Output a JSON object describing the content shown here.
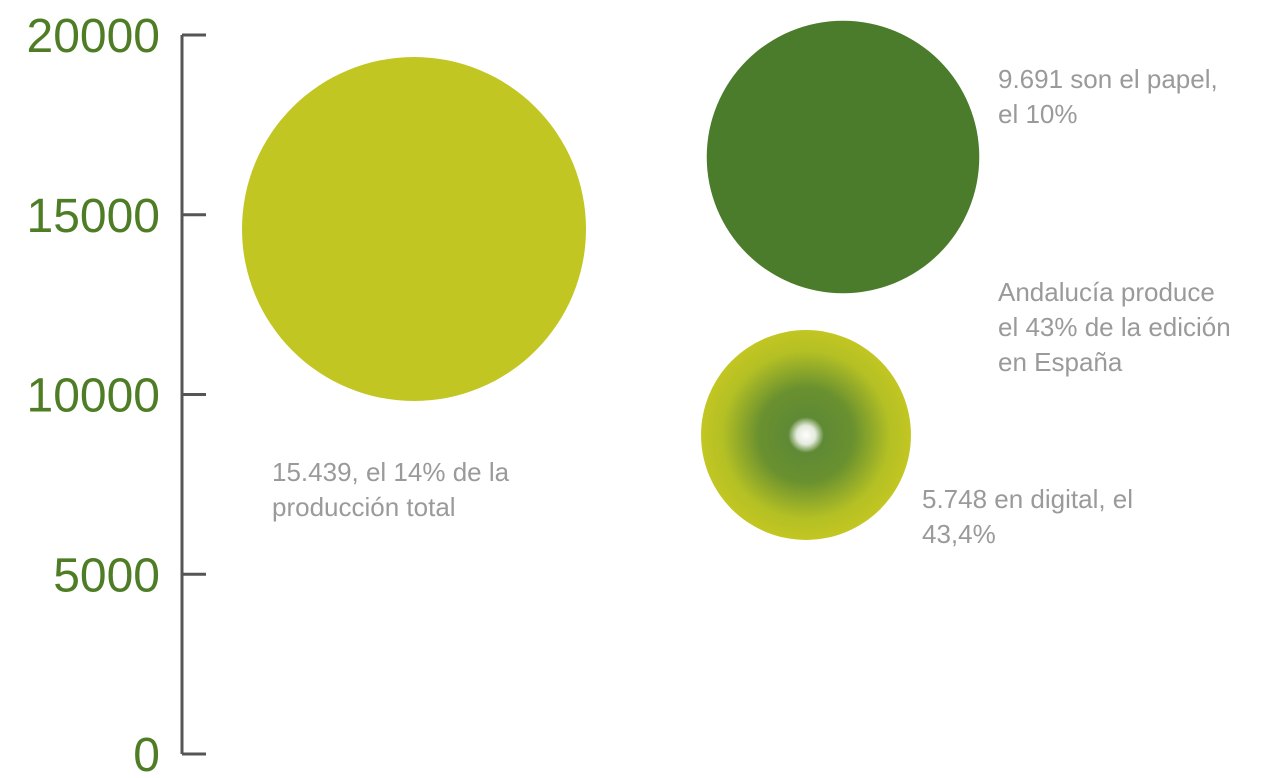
{
  "chart_data": {
    "type": "bubble",
    "ylim": [
      0,
      20000
    ],
    "yticks": [
      0,
      5000,
      10000,
      15000,
      20000
    ],
    "grid": false,
    "colors": {
      "axis": "#555555",
      "tick_label": "#4e7d25",
      "light_green": "#c2c622",
      "dark_green": "#4a7c2b",
      "annotation": "#9a9a9a"
    },
    "bubbles": [
      {
        "id": "total",
        "value": 15439,
        "color": "#c2c622",
        "style": "solid",
        "label_lines": [
          "15.439, el 14% de la",
          "producción total"
        ]
      },
      {
        "id": "paper",
        "value": 9691,
        "color": "#4a7c2b",
        "style": "solid",
        "label_lines": [
          "9.691 son el papel,",
          "el 10%"
        ]
      },
      {
        "id": "digital",
        "value": 5748,
        "color": "#c2c622",
        "style": "radial",
        "label_lines": [
          "5.748 en digital, el",
          "43,4%"
        ]
      }
    ],
    "annotations": [
      {
        "id": "andalucia",
        "lines": [
          "Andalucía produce",
          "el 43% de la edición",
          "en España"
        ]
      }
    ]
  }
}
